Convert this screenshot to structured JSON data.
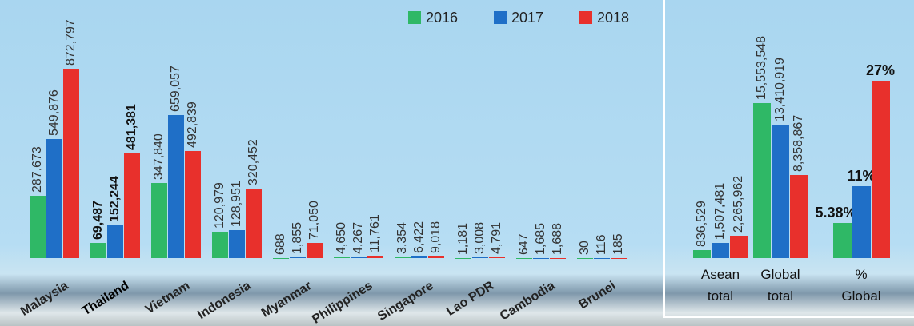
{
  "chart_data": [
    {
      "type": "bar",
      "categories": [
        "Malaysia",
        "Thailand",
        "Vietnam",
        "Indonesia",
        "Myanmar",
        "Philippines",
        "Singapore",
        "Lao PDR",
        "Cambodia",
        "Brunei"
      ],
      "highlight": "Thailand",
      "series": [
        {
          "name": "2016",
          "color": "#2fb866",
          "values": [
            287673,
            69487,
            347840,
            120979,
            688,
            4650,
            3354,
            1181,
            647,
            30
          ],
          "value_labels": [
            "287,673",
            "69,487",
            "347,840",
            "120,979",
            "688",
            "4,650",
            "3,354",
            "1,181",
            "647",
            "30"
          ]
        },
        {
          "name": "2017",
          "color": "#1f6fc7",
          "values": [
            549876,
            152244,
            659057,
            128951,
            1855,
            4267,
            6422,
            3008,
            1685,
            116
          ],
          "value_labels": [
            "549,876",
            "152,244",
            "659,057",
            "128,951",
            "1,855",
            "4,267",
            "6,422",
            "3,008",
            "1,685",
            "116"
          ]
        },
        {
          "name": "2018",
          "color": "#e8302c",
          "values": [
            872797,
            481381,
            492839,
            320452,
            71050,
            11761,
            9018,
            4791,
            1688,
            185
          ],
          "value_labels": [
            "872,797",
            "481,381",
            "492,839",
            "320,452",
            "71,050",
            "11,761",
            "9,018",
            "4,791",
            "1,688",
            "185"
          ]
        }
      ]
    },
    {
      "type": "bar",
      "categories": [
        "Asean total",
        "Global total"
      ],
      "series": [
        {
          "color": "#2fb866",
          "values": [
            836529,
            15553548
          ],
          "value_labels": [
            "836,529",
            "15,553,548"
          ]
        },
        {
          "color": "#1f6fc7",
          "values": [
            1507481,
            13410919
          ],
          "value_labels": [
            "1,507,481",
            "13,410,919"
          ]
        },
        {
          "color": "#e8302c",
          "values": [
            2265962,
            8358867
          ],
          "value_labels": [
            "2,265,962",
            "8,358,867"
          ]
        }
      ]
    },
    {
      "type": "bar",
      "categories": [
        "% Global"
      ],
      "series": [
        {
          "color": "#2fb866",
          "values": [
            5.38
          ],
          "value_labels": [
            "5.38%"
          ]
        },
        {
          "color": "#1f6fc7",
          "values": [
            11
          ],
          "value_labels": [
            "11%"
          ]
        },
        {
          "color": "#e8302c",
          "values": [
            27
          ],
          "value_labels": [
            "27%"
          ]
        }
      ]
    }
  ]
}
